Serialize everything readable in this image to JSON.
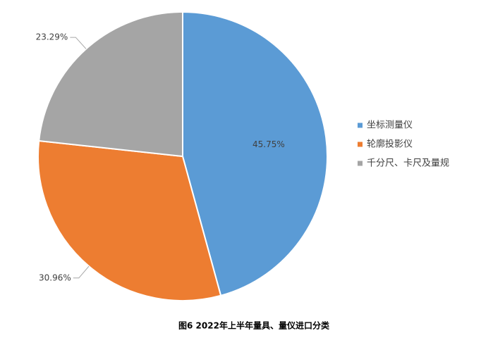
{
  "chart_data": {
    "type": "pie",
    "title": "图6 2022年上半年量具、量仪进口分类",
    "categories": [
      "坐标测量仪",
      "轮廓投影仪",
      "千分尺、卡尺及量规"
    ],
    "values": [
      45.75,
      30.96,
      23.29
    ],
    "value_labels": [
      "45.75%",
      "30.96%",
      "23.29%"
    ],
    "colors": [
      "#5b9bd5",
      "#ed7d31",
      "#a5a5a5"
    ],
    "legend": "right"
  }
}
